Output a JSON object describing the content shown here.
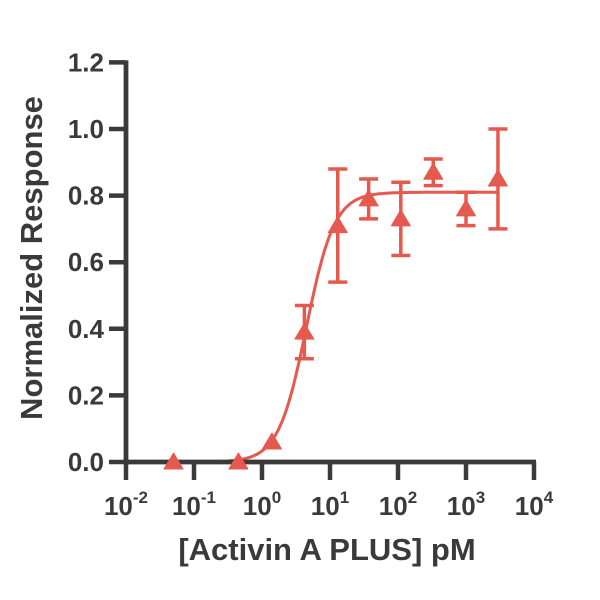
{
  "figure": {
    "background_color": "#ffffff",
    "axis_color": "#3A3A3A",
    "accent_color": "#E6594F"
  },
  "chart_data": {
    "type": "scatter",
    "title": "",
    "xlabel": "[Activin A PLUS] pM",
    "ylabel": "Normalized Response",
    "x_scale": "log10",
    "x_range_log10": [
      -2,
      4
    ],
    "ylim": [
      0.0,
      1.2
    ],
    "grid": false,
    "legend": null,
    "x_tick_labels": [
      {
        "base": "10",
        "exp": "-2"
      },
      {
        "base": "10",
        "exp": "-1"
      },
      {
        "base": "10",
        "exp": "0"
      },
      {
        "base": "10",
        "exp": "1"
      },
      {
        "base": "10",
        "exp": "2"
      },
      {
        "base": "10",
        "exp": "3"
      },
      {
        "base": "10",
        "exp": "4"
      }
    ],
    "y_tick_labels": [
      "0.0",
      "0.2",
      "0.4",
      "0.6",
      "0.8",
      "1.0",
      "1.2"
    ],
    "y_tick_values": [
      0.0,
      0.2,
      0.4,
      0.6,
      0.8,
      1.0,
      1.2
    ],
    "series": [
      {
        "name": "Activin A PLUS",
        "marker": "triangle-up",
        "color": "#E6594F",
        "error_bars": "sd",
        "points": [
          {
            "x_pM": 0.05,
            "y": 0.0,
            "err": 0.0
          },
          {
            "x_pM": 0.45,
            "y": 0.0,
            "err": 0.0
          },
          {
            "x_pM": 1.4,
            "y": 0.06,
            "err": 0.0
          },
          {
            "x_pM": 4.2,
            "y": 0.39,
            "err": 0.08
          },
          {
            "x_pM": 13,
            "y": 0.71,
            "err": 0.17
          },
          {
            "x_pM": 37,
            "y": 0.79,
            "err": 0.06
          },
          {
            "x_pM": 110,
            "y": 0.73,
            "err": 0.11
          },
          {
            "x_pM": 330,
            "y": 0.87,
            "err": 0.04
          },
          {
            "x_pM": 1000,
            "y": 0.76,
            "err": 0.05
          },
          {
            "x_pM": 2950,
            "y": 0.85,
            "err": 0.15
          }
        ],
        "fit_curve": {
          "model": "4PL",
          "bottom": 0.0,
          "top": 0.81,
          "ec50_pM": 4.5,
          "hill": 2.1,
          "draw_range_pM": [
            0.18,
            2950
          ]
        }
      }
    ]
  }
}
